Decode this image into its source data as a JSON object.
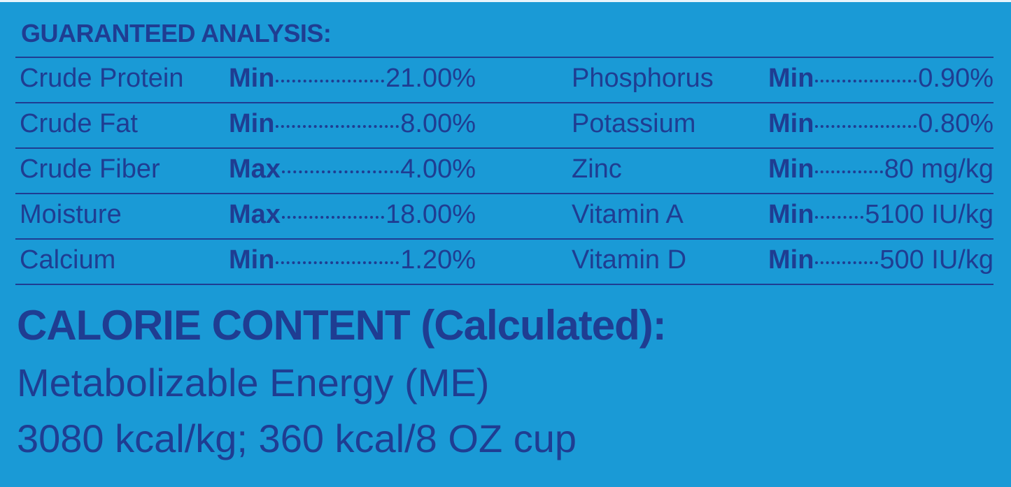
{
  "header": {
    "title": "GUARANTEED ANALYSIS:"
  },
  "table": {
    "rows": [
      [
        "Crude Protein",
        "Min",
        "21.00%",
        "Phosphorus",
        "Min",
        "0.90%"
      ],
      [
        "Crude Fat",
        "Min",
        "8.00%",
        "Potassium",
        "Min",
        "0.80%"
      ],
      [
        "Crude Fiber",
        "Max",
        "4.00%",
        "Zinc",
        "Min",
        "80 mg/kg"
      ],
      [
        "Moisture",
        "Max",
        "18.00%",
        "Vitamin A",
        "Min",
        "5100 IU/kg"
      ],
      [
        "Calcium",
        "Min",
        "1.20%",
        "Vitamin D",
        "Min",
        "500 IU/kg"
      ]
    ]
  },
  "calorie": {
    "title": "CALORIE CONTENT (Calculated):",
    "lines": [
      "Metabolizable Energy (ME)",
      "3080 kcal/kg; 360 kcal/8 OZ cup"
    ]
  }
}
